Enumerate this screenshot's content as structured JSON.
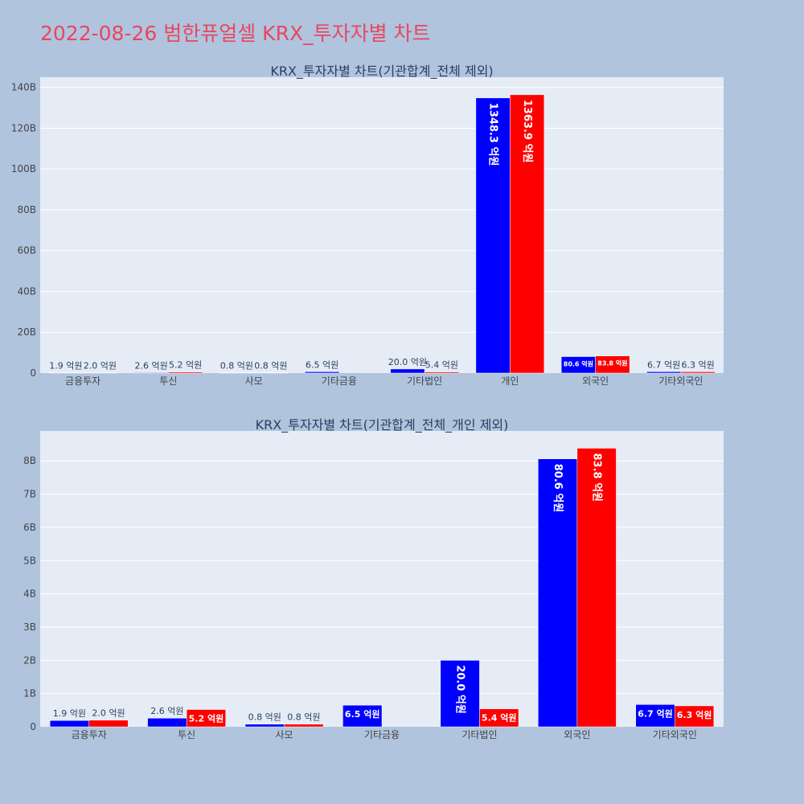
{
  "page_title": "2022-08-26 범한퓨얼셀 KRX_투자자별 차트",
  "colors": {
    "buy": "#0000ff",
    "sell": "#ff0000",
    "plot_bg": "#e5ecf6",
    "page_bg": "#b0c4de",
    "title": "#e8475f"
  },
  "chart_data": [
    {
      "type": "bar",
      "title": "KRX_투자자별 차트(기관합계_전체 제외)",
      "categories": [
        "금융투자",
        "투신",
        "사모",
        "기타금융",
        "기타법인",
        "개인",
        "외국인",
        "기타외국인"
      ],
      "series": [
        {
          "values": [
            0.19,
            0.26,
            0.08,
            0.65,
            2.0,
            134.83,
            8.06,
            0.67
          ],
          "labels": [
            "1.9 억원",
            "2.6 억원",
            "0.8 억원",
            "6.5 억원",
            "20.0 억원",
            "1348.3 억원",
            "80.6 억원",
            "6.7 억원"
          ]
        },
        {
          "values": [
            0.2,
            0.52,
            0.08,
            null,
            0.54,
            136.39,
            8.38,
            0.63
          ],
          "labels": [
            "2.0 억원",
            "5.2 억원",
            "0.8 억원",
            "",
            "5.4 억원",
            "1363.9 억원",
            "83.8 억원",
            "6.3 억원"
          ]
        }
      ],
      "ylim": [
        0,
        145
      ],
      "yticks": [
        0,
        20,
        40,
        60,
        80,
        100,
        120,
        140
      ],
      "ytick_labels": [
        "0",
        "20B",
        "40B",
        "60B",
        "80B",
        "100B",
        "120B",
        "140B"
      ],
      "grid": true,
      "legend": "none"
    },
    {
      "type": "bar",
      "title": "KRX_투자자별 차트(기관합계_전체_개인 제외)",
      "categories": [
        "금융투자",
        "투신",
        "사모",
        "기타금융",
        "기타법인",
        "외국인",
        "기타외국인"
      ],
      "series": [
        {
          "values": [
            0.19,
            0.26,
            0.08,
            0.65,
            2.0,
            8.06,
            0.67
          ],
          "labels": [
            "1.9 억원",
            "2.6 억원",
            "0.8 억원",
            "6.5 억원",
            "20.0 억원",
            "80.6 억원",
            "6.7 억원"
          ]
        },
        {
          "values": [
            0.2,
            0.52,
            0.08,
            null,
            0.54,
            8.38,
            0.63
          ],
          "labels": [
            "2.0 억원",
            "5.2 억원",
            "0.8 억원",
            "",
            "5.4 억원",
            "83.8 억원",
            "6.3 억원"
          ]
        }
      ],
      "ylim": [
        0,
        8.9
      ],
      "yticks": [
        0,
        1,
        2,
        3,
        4,
        5,
        6,
        7,
        8
      ],
      "ytick_labels": [
        "0",
        "1B",
        "2B",
        "3B",
        "4B",
        "5B",
        "6B",
        "7B",
        "8B"
      ],
      "grid": true,
      "legend": "none"
    }
  ]
}
